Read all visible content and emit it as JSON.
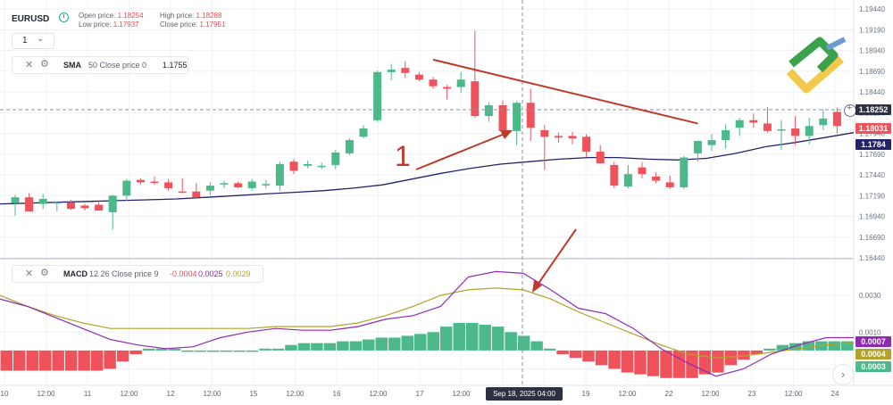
{
  "header": {
    "symbol": "EURUSD",
    "open_label": "Open price:",
    "open_value": "1.18254",
    "low_label": "Low price:",
    "low_value": "1.17937",
    "high_label": "High price:",
    "high_value": "1.18288",
    "close_label": "Close price:",
    "close_value": "1.17951",
    "timeframe": "1",
    "timeframe_chevron": "chevron-down-icon"
  },
  "sma_panel": {
    "name": "SMA",
    "params": "50 Close price 0",
    "value": "1.1755"
  },
  "macd_panel": {
    "name": "MACD",
    "params": "12 26 Close price 9",
    "value1": "-0.0004",
    "value2": "0.0025",
    "value3": "0.0029"
  },
  "annotation": {
    "label": "1"
  },
  "crosshair_time": "Sep 18, 2025 04:00",
  "price_tags": {
    "crosshair": "1.18252",
    "last": "1.18031",
    "sma": "1.1784",
    "macd_line": "0.0007",
    "signal": "0.0004",
    "histogram": "0.0003"
  },
  "colors": {
    "up": "#4cb98a",
    "down": "#f0525c",
    "sma": "#23236a",
    "macd": "#8e2bb0",
    "signal": "#b3a32a",
    "annotation": "#c0392b"
  },
  "chart_data": [
    {
      "type": "candlestick",
      "title": "EURUSD",
      "ylim": [
        1.1644,
        1.1955
      ],
      "y_ticks": [
        "1.19440",
        "1.19190",
        "1.18940",
        "1.18690",
        "1.18440",
        "1.18190",
        "1.17940",
        "1.17690",
        "1.17440",
        "1.17190",
        "1.16940",
        "1.16690",
        "1.16440"
      ],
      "x_ticks": [
        "10",
        "12:00",
        "11",
        "12:00",
        "12",
        "12:00",
        "15",
        "12:00",
        "16",
        "12:00",
        "17",
        "12:00",
        "18",
        "12:00",
        "19",
        "12:00",
        "22",
        "12:00",
        "23",
        "12:00",
        "24"
      ],
      "candles": [
        {
          "o": 1.171,
          "h": 1.172,
          "l": 1.1695,
          "c": 1.1717
        },
        {
          "o": 1.1717,
          "h": 1.1722,
          "l": 1.17,
          "c": 1.17
        },
        {
          "o": 1.1709,
          "h": 1.1721,
          "l": 1.1703,
          "c": 1.1715
        },
        {
          "o": 1.171,
          "h": 1.1712,
          "l": 1.17,
          "c": 1.1711
        },
        {
          "o": 1.1711,
          "h": 1.1714,
          "l": 1.1702,
          "c": 1.1703
        },
        {
          "o": 1.1707,
          "h": 1.1709,
          "l": 1.1701,
          "c": 1.1704
        },
        {
          "o": 1.1708,
          "h": 1.1711,
          "l": 1.1701,
          "c": 1.1701
        },
        {
          "o": 1.1699,
          "h": 1.172,
          "l": 1.1678,
          "c": 1.1719
        },
        {
          "o": 1.1719,
          "h": 1.1739,
          "l": 1.1713,
          "c": 1.1737
        },
        {
          "o": 1.1738,
          "h": 1.174,
          "l": 1.1732,
          "c": 1.1735
        },
        {
          "o": 1.1736,
          "h": 1.1742,
          "l": 1.1732,
          "c": 1.1735
        },
        {
          "o": 1.1735,
          "h": 1.1739,
          "l": 1.1725,
          "c": 1.1728
        },
        {
          "o": 1.1724,
          "h": 1.174,
          "l": 1.1722,
          "c": 1.1723
        },
        {
          "o": 1.1724,
          "h": 1.1734,
          "l": 1.1716,
          "c": 1.1717
        },
        {
          "o": 1.1725,
          "h": 1.1735,
          "l": 1.172,
          "c": 1.1731
        },
        {
          "o": 1.1734,
          "h": 1.1737,
          "l": 1.1728,
          "c": 1.1734
        },
        {
          "o": 1.1734,
          "h": 1.1736,
          "l": 1.1728,
          "c": 1.1729
        },
        {
          "o": 1.1728,
          "h": 1.1739,
          "l": 1.1725,
          "c": 1.1736
        },
        {
          "o": 1.1733,
          "h": 1.1738,
          "l": 1.1728,
          "c": 1.1733
        },
        {
          "o": 1.1731,
          "h": 1.176,
          "l": 1.1725,
          "c": 1.1757
        },
        {
          "o": 1.176,
          "h": 1.1763,
          "l": 1.1745,
          "c": 1.1749
        },
        {
          "o": 1.1755,
          "h": 1.1761,
          "l": 1.1752,
          "c": 1.1757
        },
        {
          "o": 1.1755,
          "h": 1.1759,
          "l": 1.1751,
          "c": 1.1755
        },
        {
          "o": 1.1756,
          "h": 1.1774,
          "l": 1.1751,
          "c": 1.1771
        },
        {
          "o": 1.177,
          "h": 1.1788,
          "l": 1.1768,
          "c": 1.1786
        },
        {
          "o": 1.179,
          "h": 1.1804,
          "l": 1.1788,
          "c": 1.18
        },
        {
          "o": 1.181,
          "h": 1.187,
          "l": 1.1808,
          "c": 1.1868
        },
        {
          "o": 1.1868,
          "h": 1.1878,
          "l": 1.1858,
          "c": 1.1871
        },
        {
          "o": 1.1873,
          "h": 1.1881,
          "l": 1.1861,
          "c": 1.1867
        },
        {
          "o": 1.1865,
          "h": 1.1868,
          "l": 1.1857,
          "c": 1.1859
        },
        {
          "o": 1.1859,
          "h": 1.1862,
          "l": 1.1848,
          "c": 1.1851
        },
        {
          "o": 1.185,
          "h": 1.1853,
          "l": 1.1835,
          "c": 1.1848
        },
        {
          "o": 1.185,
          "h": 1.1868,
          "l": 1.1843,
          "c": 1.1859
        },
        {
          "o": 1.1857,
          "h": 1.1918,
          "l": 1.1813,
          "c": 1.1815
        },
        {
          "o": 1.1815,
          "h": 1.1831,
          "l": 1.1808,
          "c": 1.1828
        },
        {
          "o": 1.1828,
          "h": 1.1834,
          "l": 1.1795,
          "c": 1.1797
        },
        {
          "o": 1.1797,
          "h": 1.1833,
          "l": 1.178,
          "c": 1.1831
        },
        {
          "o": 1.1831,
          "h": 1.1848,
          "l": 1.1785,
          "c": 1.1801
        },
        {
          "o": 1.1798,
          "h": 1.1804,
          "l": 1.175,
          "c": 1.179
        },
        {
          "o": 1.1791,
          "h": 1.1795,
          "l": 1.1783,
          "c": 1.1789
        },
        {
          "o": 1.1791,
          "h": 1.1796,
          "l": 1.1781,
          "c": 1.1788
        },
        {
          "o": 1.179,
          "h": 1.1793,
          "l": 1.1766,
          "c": 1.1772
        },
        {
          "o": 1.1772,
          "h": 1.178,
          "l": 1.1758,
          "c": 1.1758
        },
        {
          "o": 1.1756,
          "h": 1.176,
          "l": 1.1728,
          "c": 1.1731
        },
        {
          "o": 1.173,
          "h": 1.1756,
          "l": 1.1728,
          "c": 1.1745
        },
        {
          "o": 1.1753,
          "h": 1.1759,
          "l": 1.174,
          "c": 1.1745
        },
        {
          "o": 1.1742,
          "h": 1.1747,
          "l": 1.1734,
          "c": 1.1737
        },
        {
          "o": 1.1735,
          "h": 1.1743,
          "l": 1.1727,
          "c": 1.1729
        },
        {
          "o": 1.1729,
          "h": 1.1767,
          "l": 1.1727,
          "c": 1.1765
        },
        {
          "o": 1.177,
          "h": 1.1785,
          "l": 1.176,
          "c": 1.1785
        },
        {
          "o": 1.178,
          "h": 1.1793,
          "l": 1.1773,
          "c": 1.1786
        },
        {
          "o": 1.1786,
          "h": 1.1805,
          "l": 1.1776,
          "c": 1.1798
        },
        {
          "o": 1.1801,
          "h": 1.1813,
          "l": 1.1791,
          "c": 1.181
        },
        {
          "o": 1.181,
          "h": 1.1818,
          "l": 1.1801,
          "c": 1.1807
        },
        {
          "o": 1.1806,
          "h": 1.1826,
          "l": 1.1795,
          "c": 1.1797
        },
        {
          "o": 1.1799,
          "h": 1.181,
          "l": 1.1774,
          "c": 1.1799
        },
        {
          "o": 1.18,
          "h": 1.1815,
          "l": 1.178,
          "c": 1.1791
        },
        {
          "o": 1.1791,
          "h": 1.1813,
          "l": 1.1781,
          "c": 1.1803
        },
        {
          "o": 1.1804,
          "h": 1.1823,
          "l": 1.1798,
          "c": 1.1812
        },
        {
          "o": 1.182,
          "h": 1.1825,
          "l": 1.1794,
          "c": 1.1803
        }
      ],
      "sma_values": [
        1.1709,
        1.171,
        1.1711,
        1.1712,
        1.1713,
        1.1714,
        1.1715,
        1.1717,
        1.1719,
        1.1721,
        1.1723,
        1.1725,
        1.1728,
        1.1732,
        1.1739,
        1.1746,
        1.1752,
        1.1757,
        1.176,
        1.1763,
        1.1765,
        1.1765,
        1.1763,
        1.1762,
        1.1764,
        1.177,
        1.1778,
        1.1783,
        1.1789,
        1.1795
      ],
      "trendline": {
        "from": {
          "candle": 30,
          "price": 1.1883
        },
        "to": {
          "candle": 49,
          "price": 1.1806
        }
      }
    },
    {
      "type": "macd",
      "title": "MACD",
      "ylim": [
        -0.0019,
        0.0049
      ],
      "y_ticks": [
        "0.0030",
        "0.0010",
        "-0.0010"
      ],
      "histogram": [
        -0.0011,
        -0.0011,
        -0.0011,
        -0.0011,
        -0.0011,
        -0.0011,
        -0.0011,
        -0.0011,
        -0.001,
        -0.0006,
        -0.0002,
        0.0001,
        0.0001,
        0.0001,
        0.0,
        0.0,
        0.0,
        0.0,
        0.0,
        0.0,
        0.0001,
        0.0001,
        0.0003,
        0.0004,
        0.0004,
        0.0004,
        0.0005,
        0.0005,
        0.0006,
        0.0007,
        0.0007,
        0.0008,
        0.0009,
        0.001,
        0.0013,
        0.0015,
        0.0015,
        0.0014,
        0.0013,
        0.001,
        0.0008,
        0.0005,
        0.0001,
        -0.0002,
        -0.0004,
        -0.0006,
        -0.0008,
        -0.001,
        -0.0012,
        -0.0013,
        -0.0014,
        -0.0015,
        -0.0015,
        -0.0015,
        -0.0013,
        -0.0012,
        -0.0008,
        -0.0005,
        -0.0002,
        0.0001,
        0.0003,
        0.0004,
        0.0005,
        0.0005,
        0.0005,
        0.0005
      ],
      "macd_values": [
        0.0028,
        0.0024,
        0.0018,
        0.0012,
        0.0006,
        0.0003,
        0.0001,
        0.0002,
        0.0007,
        0.001,
        0.0012,
        0.0011,
        0.0011,
        0.0013,
        0.0017,
        0.0019,
        0.0024,
        0.004,
        0.0043,
        0.0042,
        0.0033,
        0.0023,
        0.002,
        0.0012,
        0.0001,
        -0.0007,
        -0.0014,
        -0.001,
        -0.0002,
        0.0003,
        0.0007,
        0.0007
      ],
      "signal_values": [
        0.003,
        0.0024,
        0.0019,
        0.0015,
        0.0012,
        0.0012,
        0.0012,
        0.0012,
        0.0012,
        0.0012,
        0.0013,
        0.0013,
        0.0013,
        0.0015,
        0.0019,
        0.0024,
        0.003,
        0.0033,
        0.0034,
        0.0033,
        0.0028,
        0.0021,
        0.0015,
        0.0009,
        0.0003,
        -0.0002,
        -0.0004,
        -0.0003,
        -0.0001,
        0.0001,
        0.0003,
        0.0004
      ]
    }
  ]
}
